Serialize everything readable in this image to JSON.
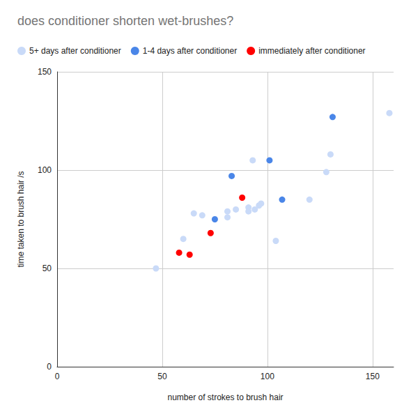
{
  "chart_data": {
    "type": "scatter",
    "title": "does conditioner shorten wet-brushes?",
    "x_label": "number of strokes to brush hair",
    "y_label": "time taken to brush hair /s",
    "xlim": [
      0,
      160
    ],
    "xticks": [
      0,
      50,
      100,
      150
    ],
    "ylim": [
      0,
      150
    ],
    "yticks": [
      0,
      50,
      100,
      150
    ],
    "grid": true,
    "legend": "top-left",
    "series": [
      {
        "name": "5+ days after conditioner",
        "color": "#c9daf8",
        "marker": "circle",
        "x": [
          47,
          60,
          65,
          69,
          81,
          81,
          85,
          91,
          91,
          93,
          94,
          96,
          97,
          104,
          120,
          128,
          130,
          158
        ],
        "values": [
          50,
          65,
          78,
          77,
          76,
          79,
          80,
          81,
          79,
          105,
          80,
          82,
          83,
          64,
          85,
          99,
          108,
          129
        ]
      },
      {
        "name": "1-4 days after conditioner",
        "color": "#4a86e8",
        "marker": "circle",
        "x": [
          75,
          83,
          101,
          107,
          131
        ],
        "values": [
          75,
          97,
          105,
          85,
          127
        ]
      },
      {
        "name": "immediately after conditioner",
        "color": "#ff0000",
        "marker": "circle",
        "x": [
          58,
          63,
          73,
          88
        ],
        "values": [
          58,
          57,
          68,
          86
        ]
      }
    ]
  }
}
